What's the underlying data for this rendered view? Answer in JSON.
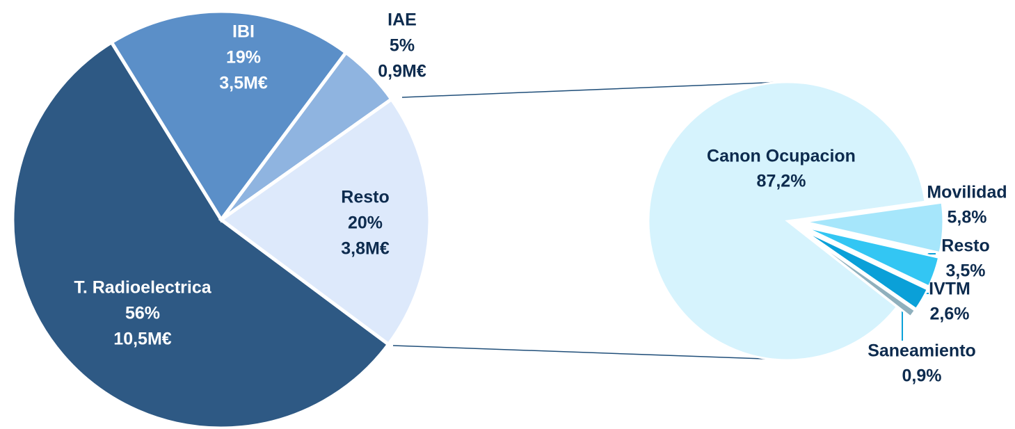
{
  "chart_data": [
    {
      "type": "pie",
      "categories": [
        "T. Radioelectrica",
        "IBI",
        "IAE",
        "Resto"
      ],
      "values": [
        56,
        19,
        5,
        20
      ],
      "value_labels": [
        "56%",
        "19%",
        "5%",
        "20%"
      ],
      "amounts": [
        10.5,
        3.5,
        0.9,
        3.8
      ],
      "amount_labels": [
        "10,5M€",
        "3,5M€",
        "0,9M€",
        "3,8M€"
      ],
      "colors": [
        "#2e5984",
        "#5b8fc8",
        "#8fb4e0",
        "#dde9fb"
      ]
    },
    {
      "type": "pie",
      "categories": [
        "Canon Ocupacion",
        "Movilidad",
        "Resto",
        "IVTM",
        "Saneamiento"
      ],
      "values": [
        87.2,
        5.8,
        3.5,
        2.6,
        0.9
      ],
      "value_labels": [
        "87,2%",
        "5,8%",
        "3,5%",
        "2,6%",
        "0,9%"
      ],
      "colors": [
        "#d6f3fd",
        "#a6e6fb",
        "#33c6f3",
        "#0aa0d8",
        "#8fb0bd"
      ]
    }
  ]
}
